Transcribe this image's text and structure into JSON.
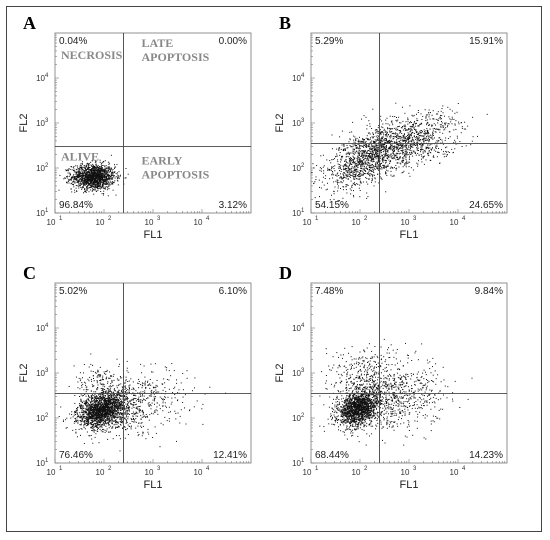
{
  "chart_data": [
    {
      "panel_label": "A",
      "type": "scatter",
      "xlabel": "FL1",
      "ylabel": "FL2",
      "x_ticks": [
        "10",
        "10",
        "10",
        "10"
      ],
      "x_tick_exp": [
        "1",
        "2",
        "3",
        "4"
      ],
      "y_ticks": [
        "10",
        "10",
        "10",
        "10"
      ],
      "y_tick_exp": [
        "1",
        "2",
        "3",
        "4"
      ],
      "xlim": [
        10,
        100000
      ],
      "ylim": [
        10,
        100000
      ],
      "x_log": true,
      "y_log": true,
      "quadrant_gate": {
        "x": 250,
        "y": 300
      },
      "quadrants": {
        "upper_left": {
          "percent": "0.04%",
          "name": "NECROSIS"
        },
        "upper_right": {
          "percent": "0.00%",
          "name": "LATE APOPTOSIS"
        },
        "lower_left": {
          "percent": "96.84%",
          "name": "ALIVE"
        },
        "lower_right": {
          "percent": "3.12%",
          "name": "EARLY APOPTOSIS"
        }
      },
      "populations": [
        {
          "cx": 60,
          "cy": 65,
          "sx": 0.22,
          "sy": 0.14,
          "n": 1500
        }
      ]
    },
    {
      "panel_label": "B",
      "type": "scatter",
      "xlabel": "FL1",
      "ylabel": "FL2",
      "x_ticks": [
        "10",
        "10",
        "10",
        "10"
      ],
      "x_tick_exp": [
        "1",
        "2",
        "3",
        "4"
      ],
      "y_ticks": [
        "10",
        "10",
        "10",
        "10"
      ],
      "y_tick_exp": [
        "1",
        "2",
        "3",
        "4"
      ],
      "xlim": [
        10,
        100000
      ],
      "ylim": [
        10,
        100000
      ],
      "x_log": true,
      "y_log": true,
      "quadrant_gate": {
        "x": 250,
        "y": 350
      },
      "quadrants": {
        "upper_left": {
          "percent": "5.29%",
          "name": ""
        },
        "upper_right": {
          "percent": "15.91%",
          "name": ""
        },
        "lower_left": {
          "percent": "54.15%",
          "name": ""
        },
        "lower_right": {
          "percent": "24.65%",
          "name": ""
        }
      },
      "populations": [
        {
          "cx": 150,
          "cy": 180,
          "sx": 0.45,
          "sy": 0.35,
          "n": 1400,
          "corr": 0.55
        },
        {
          "cx": 1500,
          "cy": 450,
          "sx": 0.45,
          "sy": 0.3,
          "n": 700,
          "corr": 0.3
        }
      ]
    },
    {
      "panel_label": "C",
      "type": "scatter",
      "xlabel": "FL1",
      "ylabel": "FL2",
      "x_ticks": [
        "10",
        "10",
        "10",
        "10"
      ],
      "x_tick_exp": [
        "1",
        "2",
        "3",
        "4"
      ],
      "y_ticks": [
        "10",
        "10",
        "10",
        "10"
      ],
      "y_tick_exp": [
        "1",
        "2",
        "3",
        "4"
      ],
      "xlim": [
        10,
        100000
      ],
      "ylim": [
        10,
        100000
      ],
      "x_log": true,
      "y_log": true,
      "quadrant_gate": {
        "x": 250,
        "y": 350
      },
      "quadrants": {
        "upper_left": {
          "percent": "5.02%",
          "name": ""
        },
        "upper_right": {
          "percent": "6.10%",
          "name": ""
        },
        "lower_left": {
          "percent": "76.46%",
          "name": ""
        },
        "lower_right": {
          "percent": "12.41%",
          "name": ""
        }
      },
      "populations": [
        {
          "cx": 90,
          "cy": 150,
          "sx": 0.25,
          "sy": 0.2,
          "n": 1800,
          "corr": 0.3
        },
        {
          "cx": 400,
          "cy": 220,
          "sx": 0.5,
          "sy": 0.35,
          "n": 600,
          "corr": 0.2
        },
        {
          "cx": 80,
          "cy": 600,
          "sx": 0.25,
          "sy": 0.25,
          "n": 150,
          "corr": 0.0
        }
      ]
    },
    {
      "panel_label": "D",
      "type": "scatter",
      "xlabel": "FL1",
      "ylabel": "FL2",
      "x_ticks": [
        "10",
        "10",
        "10",
        "10"
      ],
      "x_tick_exp": [
        "1",
        "2",
        "3",
        "4"
      ],
      "y_ticks": [
        "10",
        "10",
        "10",
        "10"
      ],
      "y_tick_exp": [
        "1",
        "2",
        "3",
        "4"
      ],
      "xlim": [
        10,
        100000
      ],
      "ylim": [
        10,
        100000
      ],
      "x_log": true,
      "y_log": true,
      "quadrant_gate": {
        "x": 250,
        "y": 350
      },
      "quadrants": {
        "upper_left": {
          "percent": "7.48%",
          "name": ""
        },
        "upper_right": {
          "percent": "9.84%",
          "name": ""
        },
        "lower_left": {
          "percent": "68.44%",
          "name": ""
        },
        "lower_right": {
          "percent": "14.23%",
          "name": ""
        }
      },
      "populations": [
        {
          "cx": 90,
          "cy": 170,
          "sx": 0.22,
          "sy": 0.2,
          "n": 1600,
          "corr": 0.3
        },
        {
          "cx": 500,
          "cy": 300,
          "sx": 0.5,
          "sy": 0.4,
          "n": 700,
          "corr": 0.15
        },
        {
          "cx": 120,
          "cy": 900,
          "sx": 0.35,
          "sy": 0.3,
          "n": 300,
          "corr": 0.0
        }
      ]
    }
  ],
  "colors": {
    "points": "#111111",
    "axes": "#777777",
    "gate": "#444444"
  }
}
